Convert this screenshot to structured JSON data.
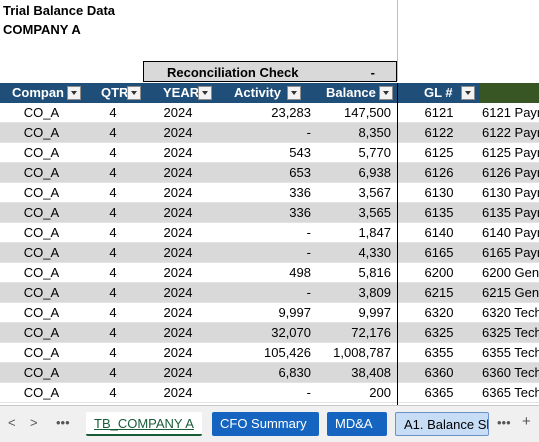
{
  "sheet": {
    "title": "Trial Balance Data",
    "company": "COMPANY A",
    "recon_label": "Reconciliation Check",
    "recon_value": "-"
  },
  "columns": [
    "Compan",
    "QTR",
    "YEAR",
    "Activity",
    "Balance",
    "GL #"
  ],
  "rows": [
    {
      "company": "CO_A",
      "qtr": "4",
      "year": "2024",
      "activity": "23,283",
      "balance": "147,500",
      "gl": "6121",
      "desc": "6121 Payr"
    },
    {
      "company": "CO_A",
      "qtr": "4",
      "year": "2024",
      "activity": "-",
      "balance": "8,350",
      "gl": "6122",
      "desc": "6122 Payr"
    },
    {
      "company": "CO_A",
      "qtr": "4",
      "year": "2024",
      "activity": "543",
      "balance": "5,770",
      "gl": "6125",
      "desc": "6125 Payr"
    },
    {
      "company": "CO_A",
      "qtr": "4",
      "year": "2024",
      "activity": "653",
      "balance": "6,938",
      "gl": "6126",
      "desc": "6126 Payr"
    },
    {
      "company": "CO_A",
      "qtr": "4",
      "year": "2024",
      "activity": "336",
      "balance": "3,567",
      "gl": "6130",
      "desc": "6130 Payr"
    },
    {
      "company": "CO_A",
      "qtr": "4",
      "year": "2024",
      "activity": "336",
      "balance": "3,565",
      "gl": "6135",
      "desc": "6135 Payr"
    },
    {
      "company": "CO_A",
      "qtr": "4",
      "year": "2024",
      "activity": "-",
      "balance": "1,847",
      "gl": "6140",
      "desc": "6140 Payr"
    },
    {
      "company": "CO_A",
      "qtr": "4",
      "year": "2024",
      "activity": "-",
      "balance": "4,330",
      "gl": "6165",
      "desc": "6165 Payr"
    },
    {
      "company": "CO_A",
      "qtr": "4",
      "year": "2024",
      "activity": "498",
      "balance": "5,816",
      "gl": "6200",
      "desc": "6200 Gene"
    },
    {
      "company": "CO_A",
      "qtr": "4",
      "year": "2024",
      "activity": "-",
      "balance": "3,809",
      "gl": "6215",
      "desc": "6215 Gene"
    },
    {
      "company": "CO_A",
      "qtr": "4",
      "year": "2024",
      "activity": "9,997",
      "balance": "9,997",
      "gl": "6320",
      "desc": "6320 Tech"
    },
    {
      "company": "CO_A",
      "qtr": "4",
      "year": "2024",
      "activity": "32,070",
      "balance": "72,176",
      "gl": "6325",
      "desc": "6325 Tech"
    },
    {
      "company": "CO_A",
      "qtr": "4",
      "year": "2024",
      "activity": "105,426",
      "balance": "1,008,787",
      "gl": "6355",
      "desc": "6355 Tech"
    },
    {
      "company": "CO_A",
      "qtr": "4",
      "year": "2024",
      "activity": "6,830",
      "balance": "38,408",
      "gl": "6360",
      "desc": "6360 Tech"
    },
    {
      "company": "CO_A",
      "qtr": "4",
      "year": "2024",
      "activity": "-",
      "balance": "200",
      "gl": "6365",
      "desc": "6365 Tech"
    }
  ],
  "tabs": {
    "prev": "<",
    "next": ">",
    "more_left": "•••",
    "items": [
      "TB_COMPANY A",
      "CFO Summary",
      "MD&A",
      "A1. Balance Sh"
    ],
    "more_right": "•••",
    "add": "+"
  },
  "colors": {
    "header_bg": "#1f4e78",
    "header_green": "#375623",
    "row_alt": "#d9d9d9",
    "tab_active": "#185c37",
    "tab_blue": "#1565c0",
    "tab_light": "#c7dcf5"
  }
}
